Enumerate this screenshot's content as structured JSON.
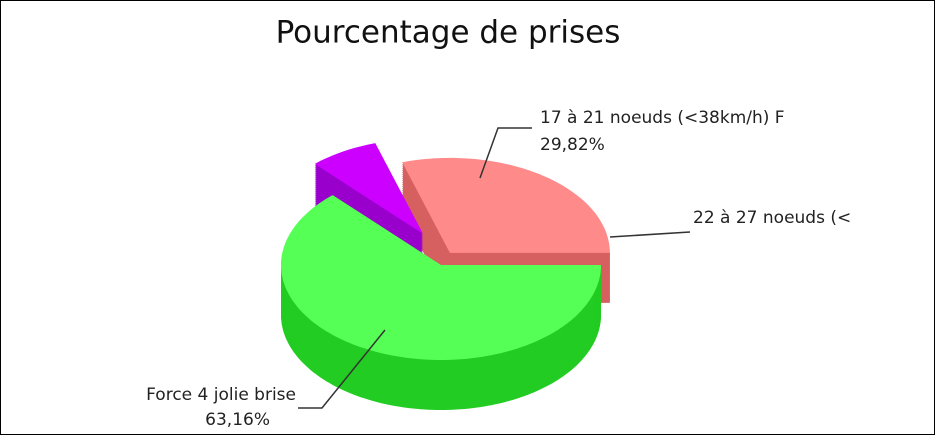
{
  "chart_data": {
    "type": "pie3d",
    "title": "Pourcentage de prises",
    "categories": [
      "17 à 21 noeuds (<38km/h) F",
      "22 à 27 noeuds (<",
      "Force 4   jolie brise"
    ],
    "values": [
      29.82,
      7.02,
      63.16
    ],
    "value_labels": [
      "29,82%",
      null,
      "63,16%"
    ],
    "colors": [
      "#ff8a8a",
      "#cc00ff",
      "#55ff55"
    ],
    "side_colors": [
      "#d66060",
      "#9900cc",
      "#22cc22"
    ]
  }
}
